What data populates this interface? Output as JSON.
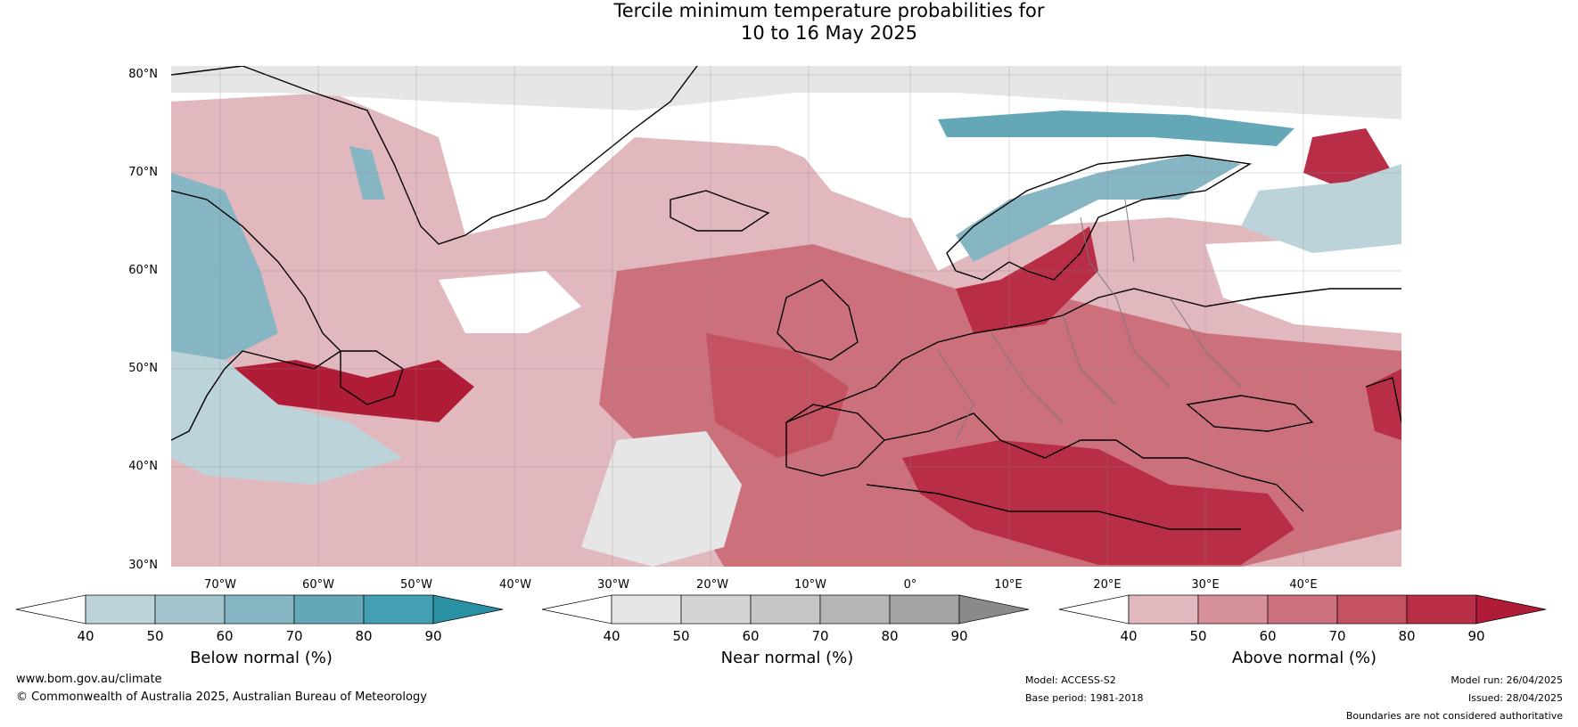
{
  "title_line1": "Tercile minimum temperature probabilities for",
  "title_line2": "10 to 16 May 2025",
  "lat_labels": [
    "80°N",
    "70°N",
    "60°N",
    "50°N",
    "40°N",
    "30°N"
  ],
  "lon_labels": [
    "70°W",
    "60°W",
    "50°W",
    "40°W",
    "30°W",
    "20°W",
    "10°W",
    "0°",
    "10°E",
    "20°E",
    "30°E",
    "40°E"
  ],
  "colorbars": [
    {
      "title": "Below normal (%)",
      "ticks": [
        "40",
        "50",
        "60",
        "70",
        "80",
        "90"
      ],
      "colors": [
        "#ffffff",
        "#bcd3da",
        "#a3c4cd",
        "#86b5c3",
        "#64a8b7",
        "#42a0b2",
        "#2a90a4"
      ]
    },
    {
      "title": "Near normal (%)",
      "ticks": [
        "40",
        "50",
        "60",
        "70",
        "80",
        "90"
      ],
      "colors": [
        "#ffffff",
        "#e6e6e6",
        "#d4d4d4",
        "#c6c6c6",
        "#b5b5b5",
        "#a3a3a3",
        "#8a8a8a"
      ]
    },
    {
      "title": "Above normal (%)",
      "ticks": [
        "40",
        "50",
        "60",
        "70",
        "80",
        "90"
      ],
      "colors": [
        "#ffffff",
        "#e2b8bf",
        "#d6909a",
        "#cc717c",
        "#c45261",
        "#b82e46",
        "#b01c37"
      ]
    }
  ],
  "footer": {
    "website": "www.bom.gov.au/climate",
    "copyright": "© Commonwealth of Australia 2025, Australian Bureau of Meteorology",
    "model": "Model: ACCESS-S2",
    "base_period": "Base period: 1981-2018",
    "model_run": "Model run: 26/04/2025",
    "issued": "Issued: 28/04/2025",
    "disclaimer": "Boundaries are not considered authoritative"
  },
  "map_colors": {
    "above_light": "#e2b8bf",
    "above_mid": "#cc717c",
    "above_strong": "#b82e46",
    "below_light": "#bcd3da",
    "below_mid": "#86b5c3",
    "below_strong": "#42a0b2",
    "near_light": "#e6e6e6",
    "near_mid": "#d4d4d4"
  }
}
